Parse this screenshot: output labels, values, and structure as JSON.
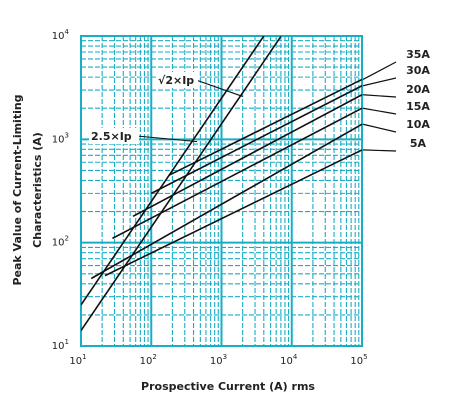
{
  "chart_data": {
    "type": "line",
    "xlabel": "Prospective Current (A) rms",
    "ylabel_line1": "Peak Value of Current-Limiting",
    "ylabel_line2": "Characteristics (A)",
    "x_scale": "log",
    "y_scale": "log",
    "xlim": [
      10,
      100000
    ],
    "ylim": [
      10,
      10000
    ],
    "grid": true,
    "grid_color": "#1aaec6",
    "line_color": "#111111",
    "x_ticks": [
      {
        "base": "10",
        "exp": "1"
      },
      {
        "base": "10",
        "exp": "2"
      },
      {
        "base": "10",
        "exp": "3"
      },
      {
        "base": "10",
        "exp": "4"
      },
      {
        "base": "10",
        "exp": "5"
      }
    ],
    "y_ticks": [
      {
        "base": "10",
        "exp": "1"
      },
      {
        "base": "10",
        "exp": "2"
      },
      {
        "base": "10",
        "exp": "3"
      },
      {
        "base": "10",
        "exp": "4"
      }
    ],
    "reference_lines": [
      {
        "label": "√2×Ip",
        "points": [
          [
            10,
            14.1
          ],
          [
            7000,
            9900
          ]
        ]
      },
      {
        "label": "2.5×Ip",
        "points": [
          [
            10,
            25
          ],
          [
            4000,
            10000
          ]
        ]
      }
    ],
    "series": [
      {
        "name": "35A",
        "points": [
          [
            180,
            450
          ],
          [
            100000,
            3800
          ]
        ]
      },
      {
        "name": "30A",
        "points": [
          [
            100,
            300
          ],
          [
            100000,
            3300
          ]
        ]
      },
      {
        "name": "20A",
        "points": [
          [
            55,
            180
          ],
          [
            100000,
            2700
          ]
        ]
      },
      {
        "name": "15A",
        "points": [
          [
            28,
            110
          ],
          [
            100000,
            2000
          ]
        ]
      },
      {
        "name": "10A",
        "points": [
          [
            14,
            45
          ],
          [
            100000,
            1400
          ]
        ]
      },
      {
        "name": "5A",
        "points": [
          [
            22,
            48
          ],
          [
            100000,
            790
          ]
        ]
      }
    ],
    "annotations": [
      {
        "text": "√2×Ip",
        "target": [
          2000,
          2600
        ]
      },
      {
        "text": "2.5×Ip",
        "target": [
          450,
          950
        ]
      }
    ]
  }
}
